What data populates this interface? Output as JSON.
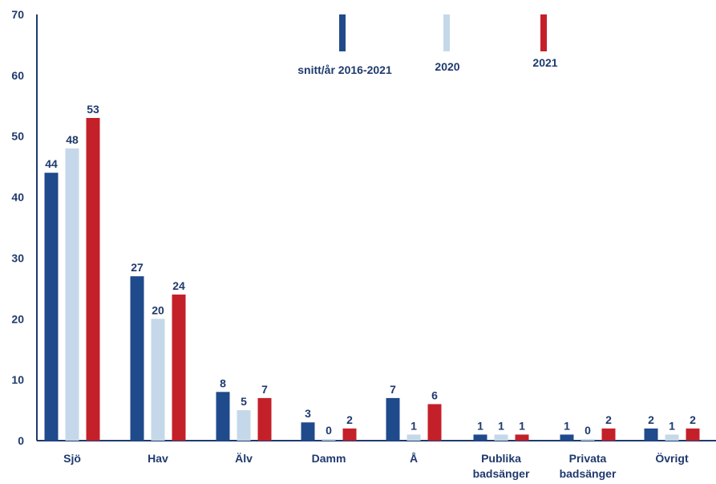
{
  "chart_data": {
    "type": "bar",
    "categories": [
      "Sjö",
      "Hav",
      "Älv",
      "Damm",
      "Å",
      "Publika badsänger",
      "Privata badsänger",
      "Övrigt"
    ],
    "series": [
      {
        "name": "snitt/år 2016-2021",
        "color": "#1f4a8c",
        "values": [
          44,
          27,
          8,
          3,
          7,
          1,
          1,
          2
        ]
      },
      {
        "name": "2020",
        "color": "#c5d8ea",
        "values": [
          48,
          20,
          5,
          0,
          1,
          1,
          0,
          1
        ]
      },
      {
        "name": "2021",
        "color": "#c4202a",
        "values": [
          53,
          24,
          7,
          2,
          6,
          1,
          2,
          2
        ]
      }
    ],
    "ylim": [
      0,
      70
    ],
    "yticks": [
      0,
      10,
      20,
      30,
      40,
      50,
      60,
      70
    ],
    "legend_position": "top",
    "grid": false,
    "text_color": "#1f3a6e"
  }
}
